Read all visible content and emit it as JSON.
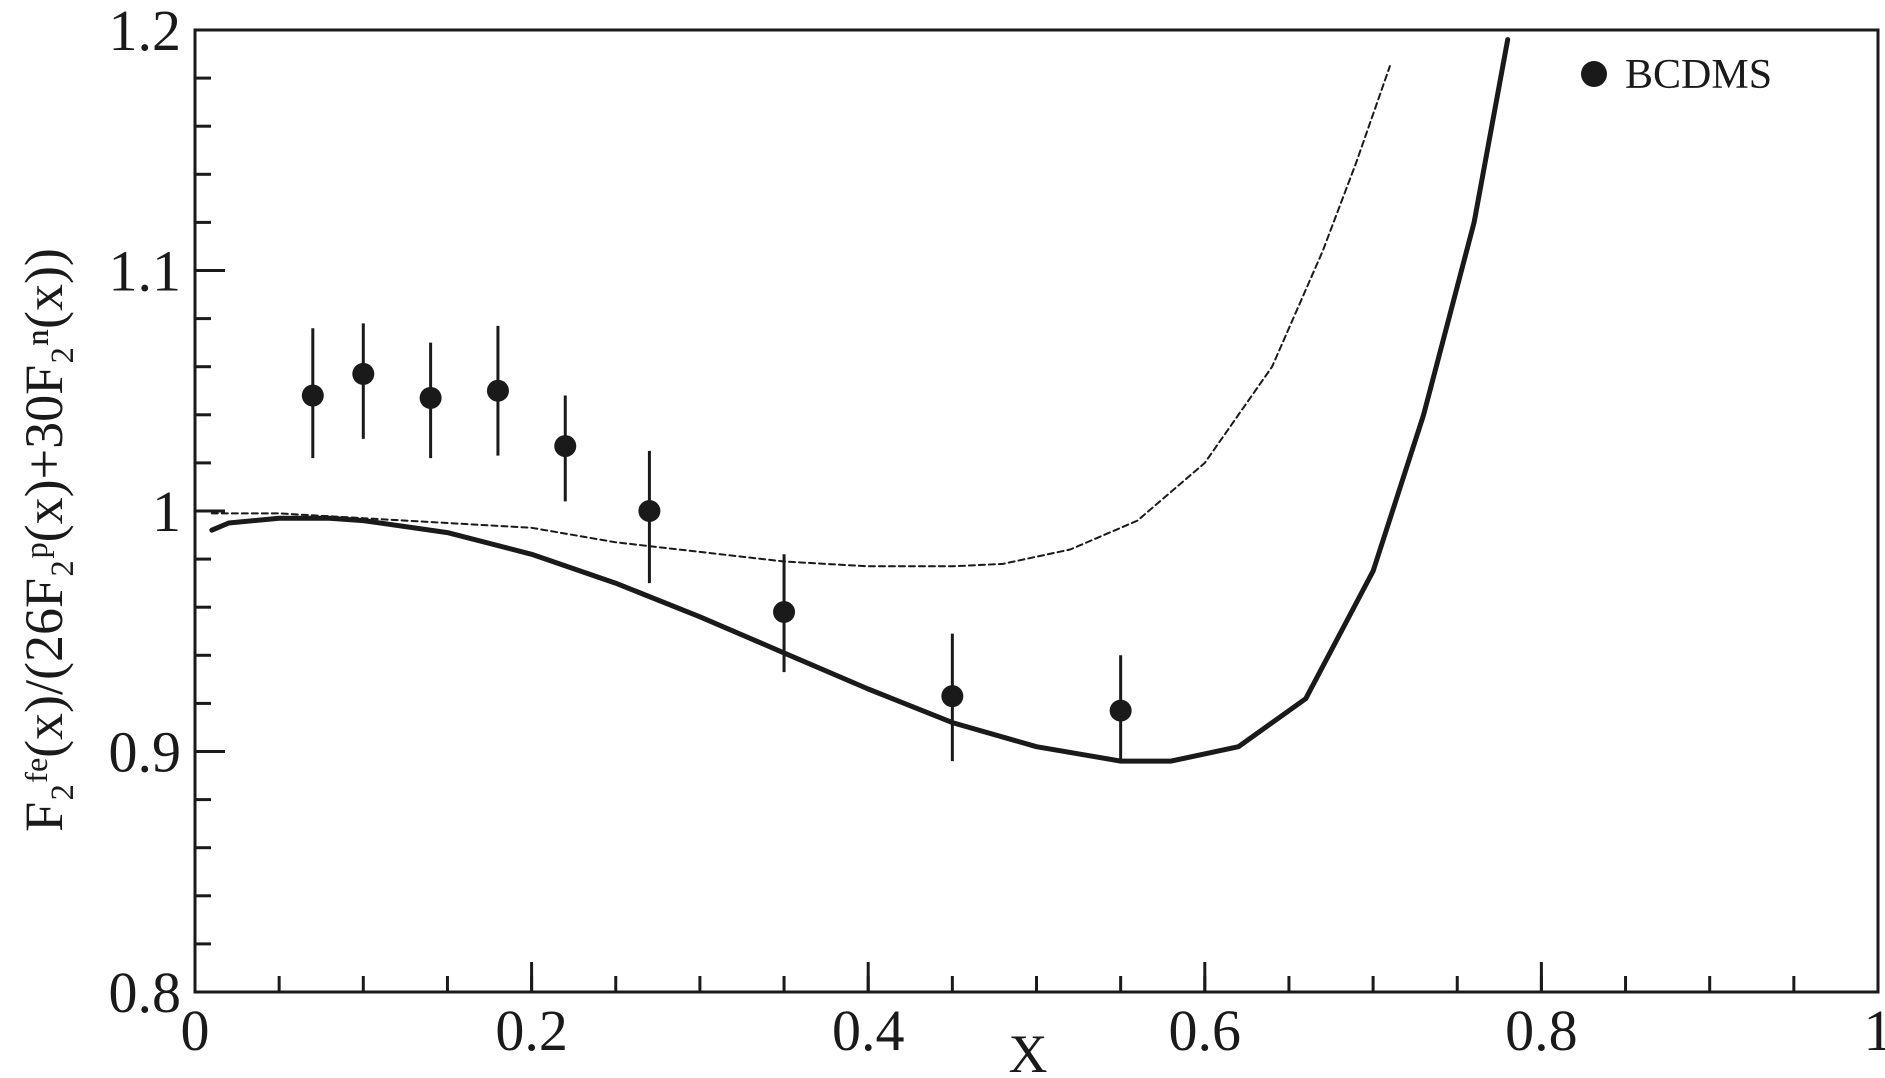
{
  "chart_data": {
    "type": "scatter",
    "xlabel": "X",
    "ylabel": "F₂ᶠᵉ(x)/(26F₂ᵖ(x)+30F₂ⁿ(x))",
    "xlim": [
      0,
      1
    ],
    "ylim": [
      0.8,
      1.2
    ],
    "x_ticks": [
      {
        "value": 0,
        "label": "0"
      },
      {
        "value": 0.2,
        "label": "0.2"
      },
      {
        "value": 0.4,
        "label": "0.4"
      },
      {
        "value": 0.6,
        "label": "0.6"
      },
      {
        "value": 0.8,
        "label": "0.8"
      },
      {
        "value": 1,
        "label": "1"
      }
    ],
    "y_ticks": [
      {
        "value": 0.8,
        "label": "0.8"
      },
      {
        "value": 0.9,
        "label": "0.9"
      },
      {
        "value": 1.0,
        "label": "1"
      },
      {
        "value": 1.1,
        "label": "1.1"
      },
      {
        "value": 1.2,
        "label": "1.2"
      }
    ],
    "x_minor_step": 0.05,
    "y_minor_step": 0.02,
    "grid": false,
    "legend": {
      "placement": "top-right",
      "entries": [
        "BCDMS"
      ]
    },
    "points": {
      "name": "BCDMS",
      "x": [
        0.07,
        0.1,
        0.14,
        0.18,
        0.22,
        0.27,
        0.35,
        0.45,
        0.55
      ],
      "y": [
        1.048,
        1.057,
        1.047,
        1.05,
        1.027,
        1.0,
        0.958,
        0.923,
        0.917
      ],
      "y_low": [
        1.022,
        1.03,
        1.022,
        1.023,
        1.004,
        0.97,
        0.933,
        0.896,
        0.896
      ],
      "y_high": [
        1.076,
        1.078,
        1.07,
        1.077,
        1.048,
        1.025,
        0.982,
        0.949,
        0.94
      ]
    },
    "lines": [
      {
        "style": "solid",
        "x": [
          0.01,
          0.02,
          0.05,
          0.08,
          0.1,
          0.15,
          0.2,
          0.25,
          0.3,
          0.35,
          0.4,
          0.45,
          0.5,
          0.55,
          0.58,
          0.62,
          0.66,
          0.7,
          0.73,
          0.76,
          0.78
        ],
        "y": [
          0.992,
          0.995,
          0.997,
          0.997,
          0.996,
          0.991,
          0.982,
          0.97,
          0.956,
          0.941,
          0.926,
          0.912,
          0.902,
          0.896,
          0.896,
          0.902,
          0.922,
          0.975,
          1.04,
          1.12,
          1.196
        ]
      },
      {
        "style": "dashed",
        "x": [
          0.01,
          0.05,
          0.1,
          0.15,
          0.2,
          0.25,
          0.3,
          0.35,
          0.4,
          0.45,
          0.48,
          0.52,
          0.56,
          0.6,
          0.64,
          0.67,
          0.69,
          0.71
        ],
        "y": [
          0.999,
          0.999,
          0.997,
          0.995,
          0.993,
          0.987,
          0.983,
          0.979,
          0.977,
          0.977,
          0.978,
          0.984,
          0.996,
          1.02,
          1.06,
          1.108,
          1.145,
          1.185
        ]
      }
    ]
  }
}
